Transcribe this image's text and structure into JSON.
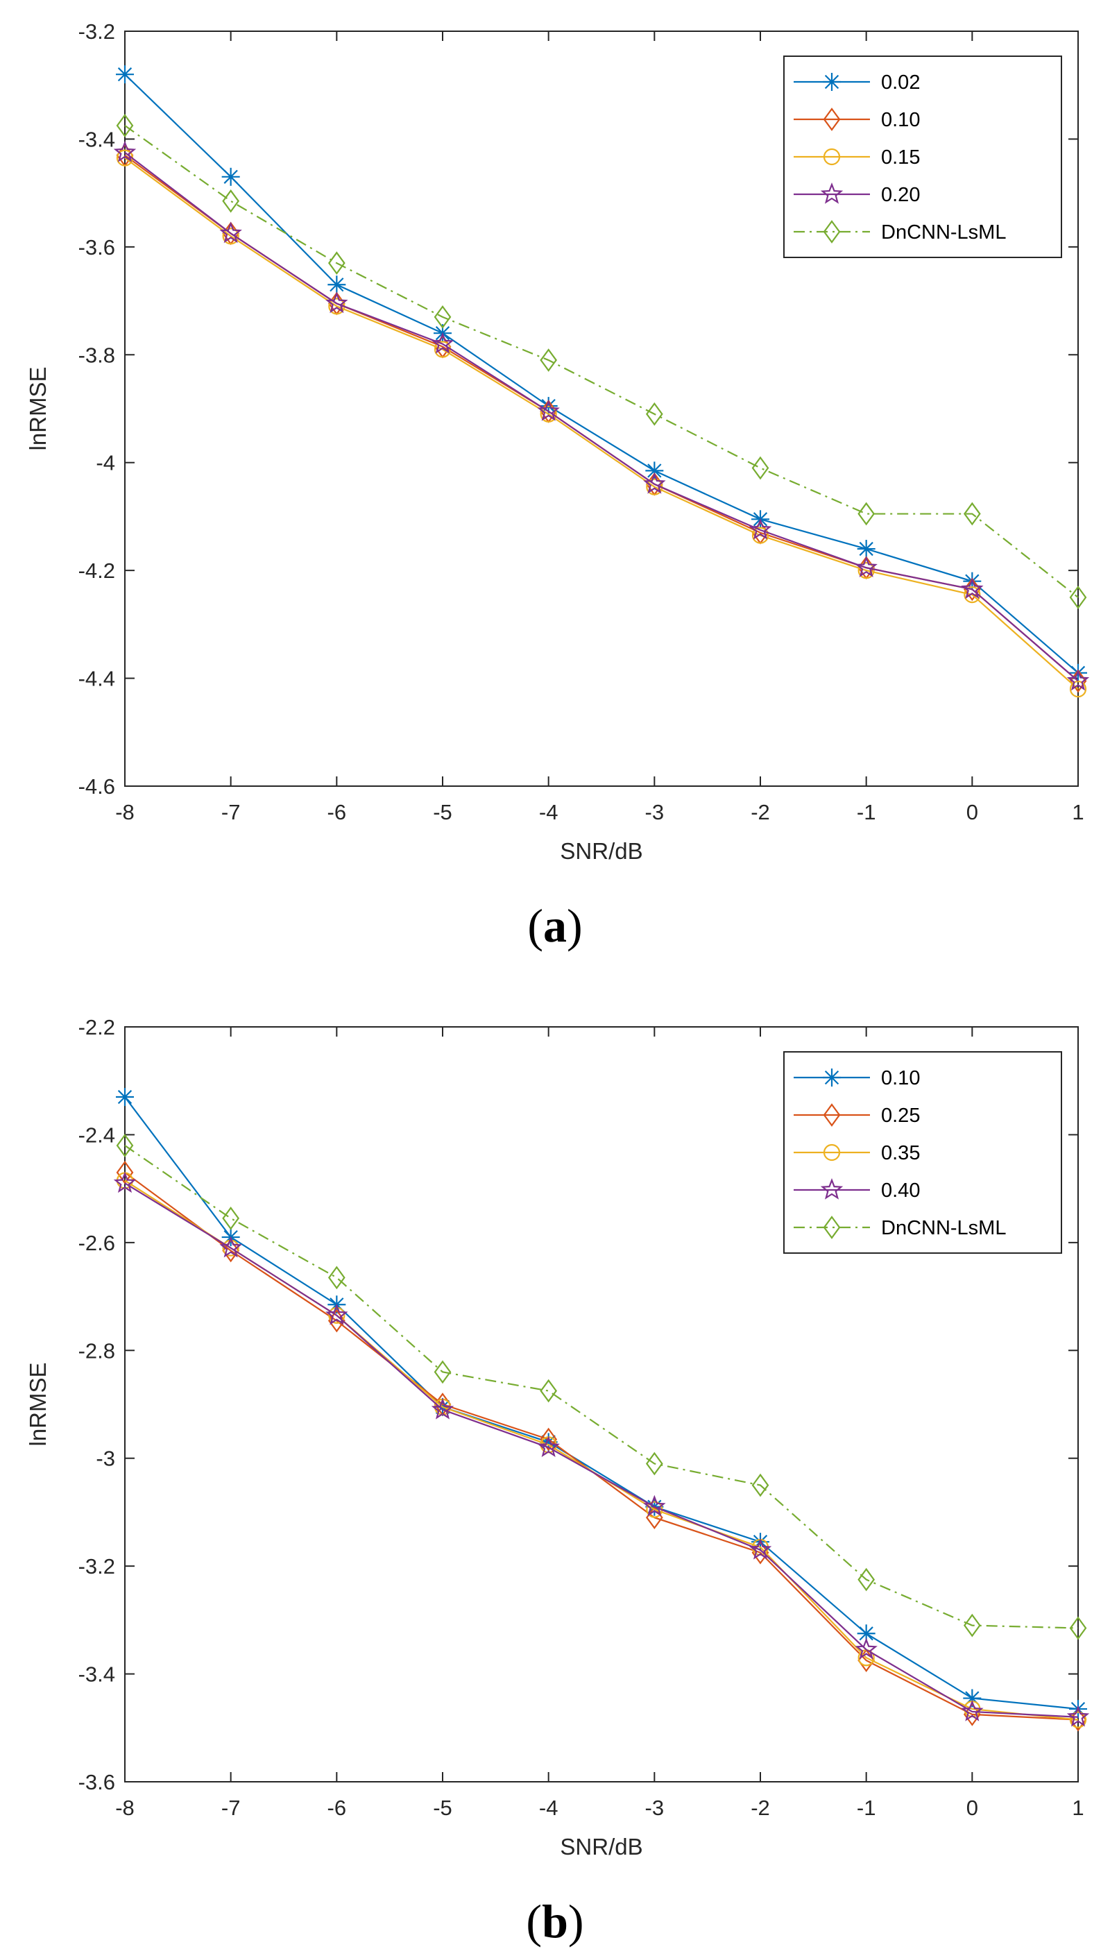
{
  "panels": {
    "a": "a",
    "b": "b"
  },
  "chart_data": [
    {
      "id": "a",
      "type": "line",
      "title": "",
      "xlabel": "SNR/dB",
      "ylabel": "lnRMSE",
      "x": [
        -8,
        -7,
        -6,
        -5,
        -4,
        -3,
        -2,
        -1,
        0,
        1
      ],
      "xticks": [
        "-8",
        "-7",
        "-6",
        "-5",
        "-4",
        "-3",
        "-2",
        "-1",
        "0",
        "1"
      ],
      "ylim": [
        -4.6,
        -3.2
      ],
      "yticks": [
        -3.2,
        -3.4,
        -3.6,
        -3.8,
        -4,
        -4.2,
        -4.4,
        -4.6
      ],
      "ytick_labels": [
        "-3.2",
        "-3.4",
        "-3.6",
        "-3.8",
        "-4",
        "-4.2",
        "-4.4",
        "-4.6"
      ],
      "legend_position": "top-right",
      "series": [
        {
          "name": "0.02",
          "color": "#0072BD",
          "marker": "asterisk",
          "dash": "solid",
          "values": [
            -3.28,
            -3.47,
            -3.67,
            -3.76,
            -3.895,
            -4.015,
            -4.105,
            -4.16,
            -4.22,
            -4.39
          ]
        },
        {
          "name": "0.10",
          "color": "#D95319",
          "marker": "diamond",
          "dash": "solid",
          "values": [
            -3.43,
            -3.575,
            -3.705,
            -3.785,
            -3.905,
            -4.04,
            -4.13,
            -4.195,
            -4.235,
            -4.405
          ]
        },
        {
          "name": "0.15",
          "color": "#EDB120",
          "marker": "circle",
          "dash": "solid",
          "values": [
            -3.435,
            -3.58,
            -3.71,
            -3.79,
            -3.91,
            -4.045,
            -4.135,
            -4.2,
            -4.245,
            -4.42
          ]
        },
        {
          "name": "0.20",
          "color": "#7E2F8E",
          "marker": "pentagram",
          "dash": "solid",
          "values": [
            -3.425,
            -3.575,
            -3.705,
            -3.78,
            -3.905,
            -4.04,
            -4.125,
            -4.195,
            -4.235,
            -4.405
          ]
        },
        {
          "name": "DnCNN-LsML",
          "color": "#77AC30",
          "marker": "diamond",
          "dash": "dashdot",
          "values": [
            -3.375,
            -3.515,
            -3.63,
            -3.73,
            -3.81,
            -3.91,
            -4.01,
            -4.095,
            -4.095,
            -4.25
          ]
        }
      ]
    },
    {
      "id": "b",
      "type": "line",
      "title": "",
      "xlabel": "SNR/dB",
      "ylabel": "lnRMSE",
      "x": [
        -8,
        -7,
        -6,
        -5,
        -4,
        -3,
        -2,
        -1,
        0,
        1
      ],
      "xticks": [
        "-8",
        "-7",
        "-6",
        "-5",
        "-4",
        "-3",
        "-2",
        "-1",
        "0",
        "1"
      ],
      "ylim": [
        -3.6,
        -2.2
      ],
      "yticks": [
        -2.2,
        -2.4,
        -2.6,
        -2.8,
        -3,
        -3.2,
        -3.4,
        -3.6
      ],
      "ytick_labels": [
        "-2.2",
        "-2.4",
        "-2.6",
        "-2.8",
        "-3",
        "-3.2",
        "-3.4",
        "-3.6"
      ],
      "legend_position": "top-right",
      "series": [
        {
          "name": "0.10",
          "color": "#0072BD",
          "marker": "asterisk",
          "dash": "solid",
          "values": [
            -2.33,
            -2.59,
            -2.715,
            -2.905,
            -2.97,
            -3.09,
            -3.155,
            -3.325,
            -3.445,
            -3.465
          ]
        },
        {
          "name": "0.25",
          "color": "#D95319",
          "marker": "diamond",
          "dash": "solid",
          "values": [
            -2.47,
            -2.615,
            -2.745,
            -2.9,
            -2.965,
            -3.11,
            -3.175,
            -3.375,
            -3.475,
            -3.485
          ]
        },
        {
          "name": "0.35",
          "color": "#EDB120",
          "marker": "circle",
          "dash": "solid",
          "values": [
            -2.485,
            -2.61,
            -2.735,
            -2.905,
            -2.975,
            -3.095,
            -3.165,
            -3.37,
            -3.465,
            -3.485
          ]
        },
        {
          "name": "0.40",
          "color": "#7E2F8E",
          "marker": "pentagram",
          "dash": "solid",
          "values": [
            -2.49,
            -2.61,
            -2.735,
            -2.91,
            -2.98,
            -3.09,
            -3.17,
            -3.355,
            -3.47,
            -3.48
          ]
        },
        {
          "name": "DnCNN-LsML",
          "color": "#77AC30",
          "marker": "diamond",
          "dash": "dashdot",
          "values": [
            -2.42,
            -2.555,
            -2.665,
            -2.84,
            -2.875,
            -3.01,
            -3.05,
            -3.225,
            -3.31,
            -3.315
          ]
        }
      ]
    }
  ]
}
